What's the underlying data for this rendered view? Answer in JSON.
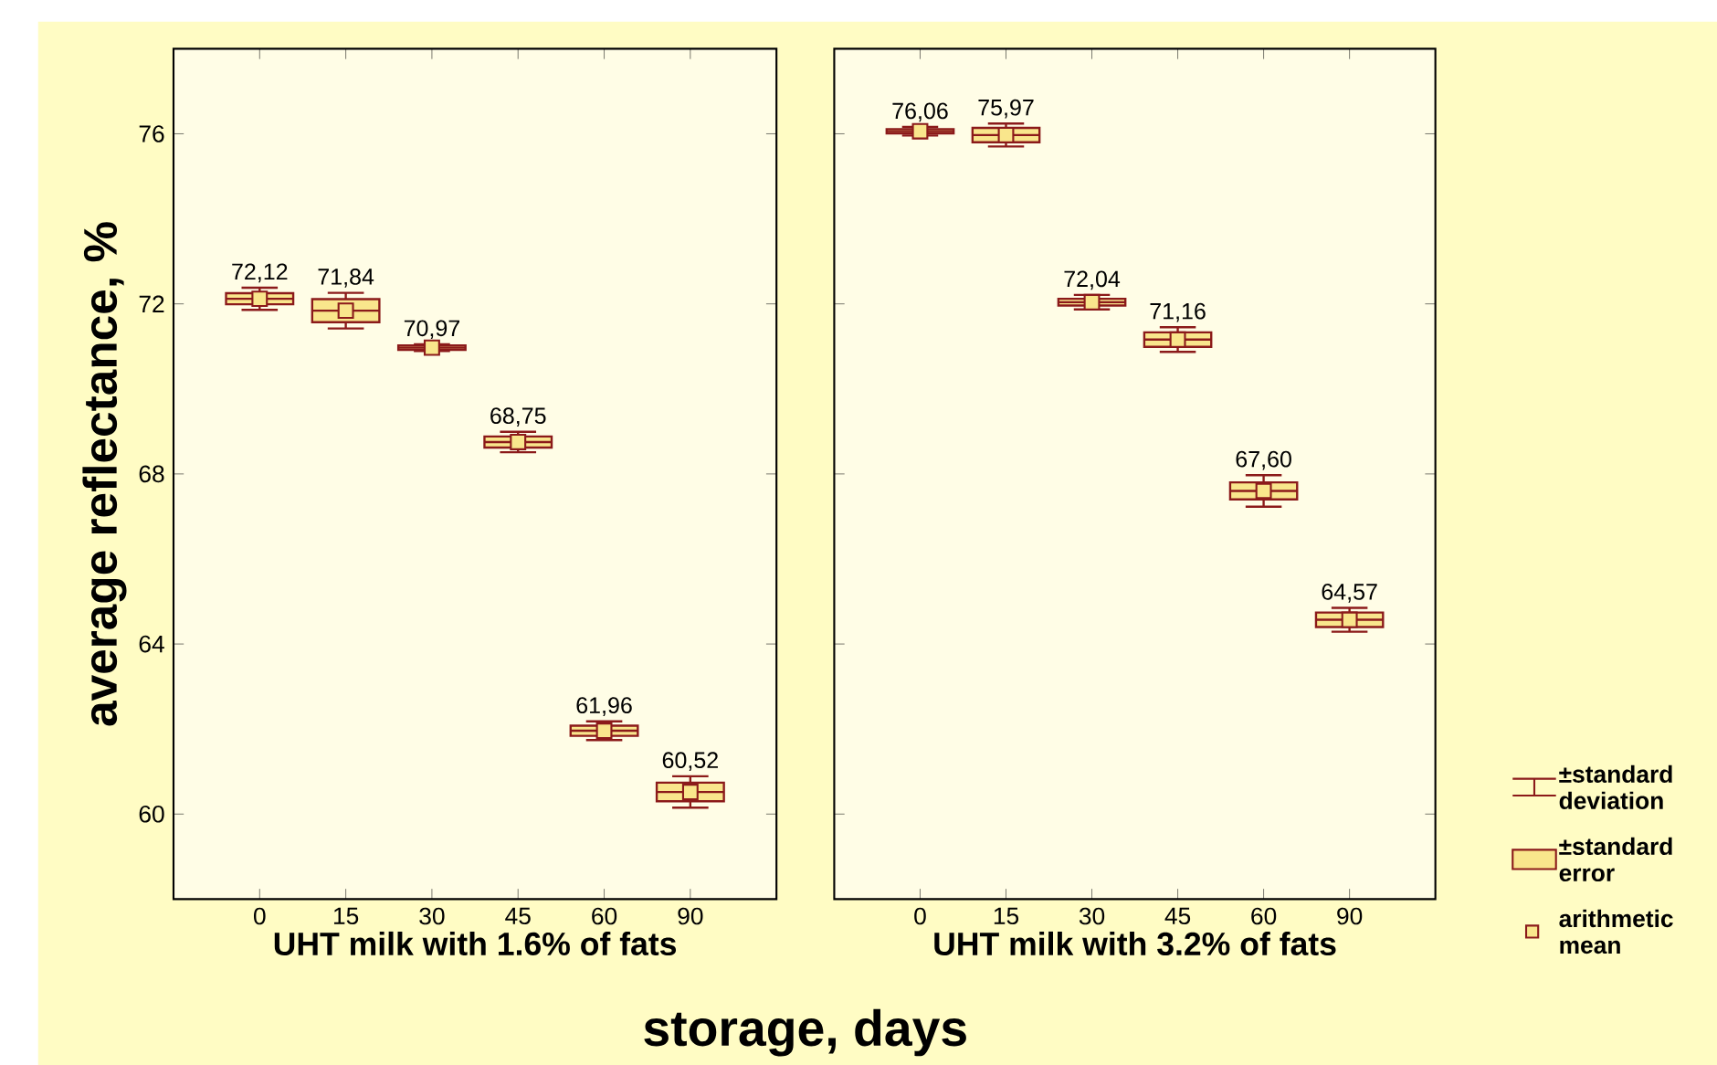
{
  "chart_data": [
    {
      "type": "box",
      "ylabel": "average reflectance, %",
      "xlabel": "UHT milk with 1.6% of fats",
      "color": "#f9e68c",
      "categories": [
        "0",
        "15",
        "30",
        "45",
        "60",
        "90"
      ],
      "ylim": [
        58,
        78
      ],
      "yticks": [
        60,
        64,
        68,
        72,
        76
      ],
      "boxes": [
        {
          "low": 71.86,
          "q1": 71.99,
          "median": 72.12,
          "q3": 72.25,
          "high": 72.38,
          "mean": 72.12
        },
        {
          "low": 71.42,
          "q1": 71.57,
          "median": 71.84,
          "q3": 72.11,
          "high": 72.26,
          "mean": 71.84
        },
        {
          "low": 70.89,
          "q1": 70.92,
          "median": 70.97,
          "q3": 71.02,
          "high": 71.05,
          "mean": 70.97
        },
        {
          "low": 68.51,
          "q1": 68.62,
          "median": 68.75,
          "q3": 68.88,
          "high": 68.99,
          "mean": 68.75
        },
        {
          "low": 61.74,
          "q1": 61.84,
          "median": 61.96,
          "q3": 62.08,
          "high": 62.18,
          "mean": 61.96
        },
        {
          "low": 60.15,
          "q1": 60.3,
          "median": 60.52,
          "q3": 60.74,
          "high": 60.89,
          "mean": 60.52
        }
      ],
      "value_labels": [
        "72,12",
        "71,84",
        "70,97",
        "68,75",
        "61,96",
        "60,52"
      ],
      "annotations": [
        "storage, days"
      ]
    },
    {
      "type": "box",
      "xlabel": "UHT milk with 3.2% of fats",
      "color": "#f9e68c",
      "tick_labels": "x",
      "categories": [
        "0",
        "15",
        "30",
        "45",
        "60",
        "90"
      ],
      "ylim": [
        58,
        78
      ],
      "yticks": [
        60,
        64,
        68,
        72,
        76
      ],
      "boxes": [
        {
          "low": 75.96,
          "q1": 76.01,
          "median": 76.06,
          "q3": 76.11,
          "high": 76.16,
          "mean": 76.06
        },
        {
          "low": 75.7,
          "q1": 75.8,
          "median": 75.97,
          "q3": 76.14,
          "high": 76.24,
          "mean": 75.97
        },
        {
          "low": 71.87,
          "q1": 71.96,
          "median": 72.04,
          "q3": 72.12,
          "high": 72.21,
          "mean": 72.04
        },
        {
          "low": 70.87,
          "q1": 70.99,
          "median": 71.16,
          "q3": 71.33,
          "high": 71.45,
          "mean": 71.16
        },
        {
          "low": 67.23,
          "q1": 67.4,
          "median": 67.6,
          "q3": 67.8,
          "high": 67.97,
          "mean": 67.6
        },
        {
          "low": 64.29,
          "q1": 64.4,
          "median": 64.57,
          "q3": 64.74,
          "high": 64.85,
          "mean": 64.57
        }
      ],
      "value_labels": [
        "76,06",
        "75,97",
        "72,04",
        "71,16",
        "67,60",
        "64,57"
      ],
      "annotations": [
        "±standard deviation",
        "±standard error",
        "arithmetic mean"
      ]
    }
  ]
}
